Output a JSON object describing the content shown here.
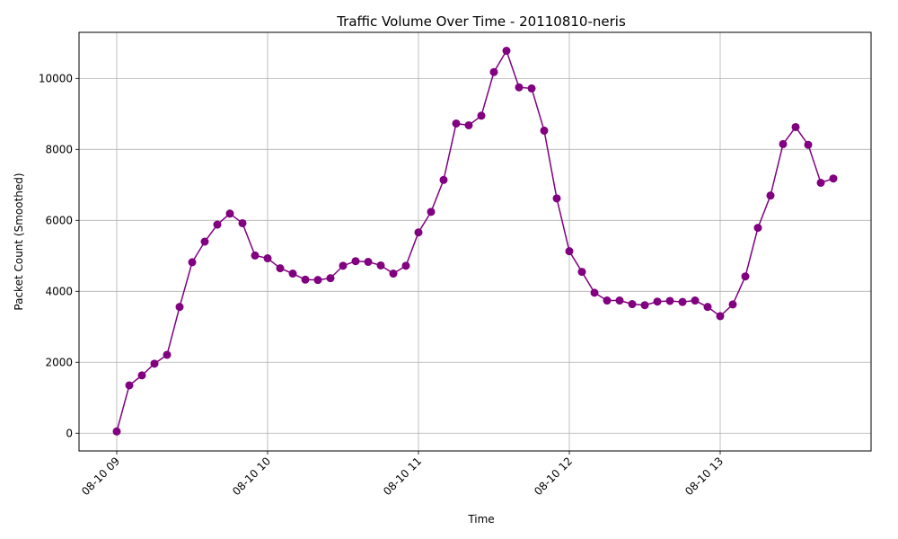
{
  "chart_data": {
    "type": "line",
    "title": "Traffic Volume Over Time - 20110810-neris",
    "xlabel": "Time",
    "ylabel": "Packet Count (Smoothed)",
    "x_start": "2011-08-10 09:00",
    "x_step_minutes": 5,
    "x_ticks": [
      "08-10 09",
      "08-10 10",
      "08-10 11",
      "08-10 12",
      "08-10 13"
    ],
    "x_tick_positions": [
      "2011-08-10 09:00",
      "2011-08-10 10:00",
      "2011-08-10 11:00",
      "2011-08-10 12:00",
      "2011-08-10 13:00"
    ],
    "xlim": [
      "2011-08-10 08:45",
      "2011-08-10 14:00"
    ],
    "y_ticks": [
      0,
      2000,
      4000,
      6000,
      8000,
      10000
    ],
    "ylim": [
      -500,
      11300
    ],
    "grid": true,
    "color": "#800080",
    "series": [
      {
        "name": "",
        "values": [
          50,
          1350,
          1630,
          1960,
          2210,
          3560,
          4820,
          5400,
          5880,
          6190,
          5920,
          5010,
          4930,
          4650,
          4500,
          4330,
          4320,
          4370,
          4720,
          4850,
          4830,
          4730,
          4500,
          4720,
          5660,
          6240,
          7140,
          8730,
          8680,
          8950,
          10180,
          10780,
          9750,
          9720,
          8530,
          6620,
          5130,
          4550,
          3960,
          3740,
          3740,
          3640,
          3610,
          3710,
          3730,
          3700,
          3740,
          3560,
          3300,
          3630,
          4420,
          5790,
          6700,
          8150,
          8630,
          8130,
          7060,
          7180
        ]
      }
    ]
  }
}
